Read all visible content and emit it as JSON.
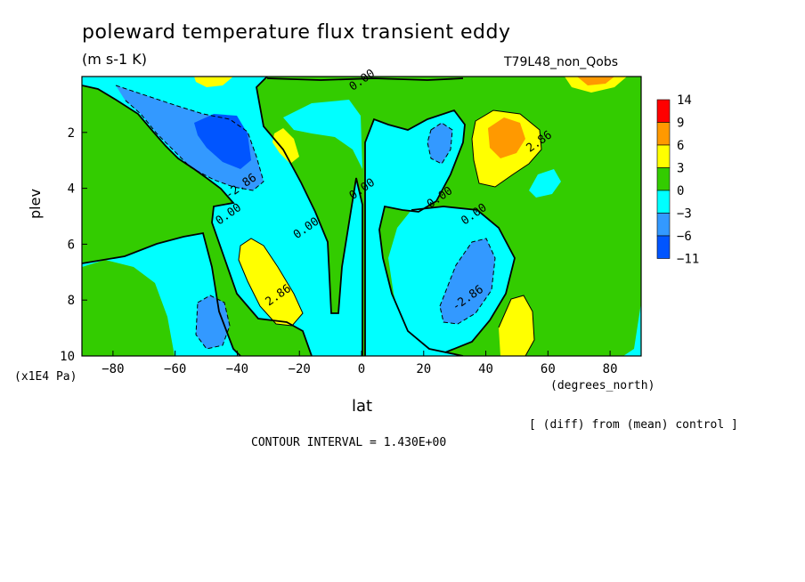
{
  "header": {
    "title": "poleward temperature flux transient eddy",
    "units": "(m s-1 K)",
    "run_name": "T79L48_non_Qobs"
  },
  "footer": {
    "comparison_note": "[ (diff) from (mean) control ]",
    "contour_interval": "CONTOUR INTERVAL = 1.430E+00"
  },
  "chart_data": {
    "type": "heatmap",
    "xlabel": "lat",
    "x_units": "(degrees_north)",
    "ylabel": "plev",
    "y_units": "(x1E4 Pa)",
    "xlim": [
      -90,
      90
    ],
    "ylim": [
      10,
      0
    ],
    "x_ticks": [
      -80,
      -60,
      -40,
      -20,
      0,
      20,
      40,
      60,
      80
    ],
    "y_ticks": [
      2,
      4,
      6,
      8,
      10
    ],
    "colorbar": {
      "levels": [
        "14",
        "9",
        "6",
        "3",
        "0",
        "-3",
        "-6",
        "-11"
      ],
      "colors": [
        "#ff0000",
        "#ff9900",
        "#ffff00",
        "#33cc00",
        "#00ffff",
        "#3399ff",
        "#0055ff"
      ]
    },
    "contour_labels": [
      {
        "text": "0.00",
        "lat": -43,
        "plev": 4.9
      },
      {
        "text": "0.00",
        "lat": -18,
        "plev": 5.4
      },
      {
        "text": "0.00",
        "lat": 0,
        "plev": 4.0
      },
      {
        "text": "0.00",
        "lat": 25,
        "plev": 4.3
      },
      {
        "text": "0.00",
        "lat": 36,
        "plev": 4.9
      },
      {
        "text": "0.00",
        "lat": 0,
        "plev": 0.1
      },
      {
        "text": "-2.86",
        "lat": -39,
        "plev": 3.9
      },
      {
        "text": "2.86",
        "lat": -27,
        "plev": 7.8
      },
      {
        "text": "-2.86",
        "lat": 34,
        "plev": 7.9
      },
      {
        "text": "2.86",
        "lat": 57,
        "plev": 2.3
      }
    ],
    "features": [
      {
        "sign": "negative",
        "level": "-6",
        "lat": -44,
        "plev": 2.4,
        "dlat": 8,
        "dplev": 1.0
      },
      {
        "sign": "negative",
        "level": "-3",
        "lat": -50,
        "plev": 2.3,
        "dlat": 18,
        "dplev": 1.9
      },
      {
        "sign": "negative",
        "level": "-3",
        "lat": -48,
        "plev": 9.0,
        "dlat": 5,
        "dplev": 0.9
      },
      {
        "sign": "positive",
        "level": "3",
        "lat": -33,
        "plev": 7.4,
        "dlat": 6,
        "dplev": 1.4
      },
      {
        "sign": "positive",
        "level": "3",
        "lat": -25,
        "plev": 2.5,
        "dlat": 3,
        "dplev": 0.5
      },
      {
        "sign": "positive",
        "level": "3",
        "lat": -50,
        "plev": 0.2,
        "dlat": 6,
        "dplev": 0.2
      },
      {
        "sign": "negative",
        "level": "-3",
        "lat": 25,
        "plev": 2.5,
        "dlat": 3,
        "dplev": 0.7
      },
      {
        "sign": "negative",
        "level": "-3",
        "lat": 33,
        "plev": 7.8,
        "dlat": 6,
        "dplev": 1.3
      },
      {
        "sign": "positive",
        "level": "6",
        "lat": 46,
        "plev": 2.1,
        "dlat": 4,
        "dplev": 0.6
      },
      {
        "sign": "positive",
        "level": "3",
        "lat": 47,
        "plev": 2.4,
        "dlat": 7,
        "dplev": 1.2
      },
      {
        "sign": "positive",
        "level": "3",
        "lat": 51,
        "plev": 9.0,
        "dlat": 5,
        "dplev": 0.9
      },
      {
        "sign": "positive",
        "level": "3",
        "lat": 70,
        "plev": 0.3,
        "dlat": 7,
        "dplev": 0.3
      }
    ]
  }
}
